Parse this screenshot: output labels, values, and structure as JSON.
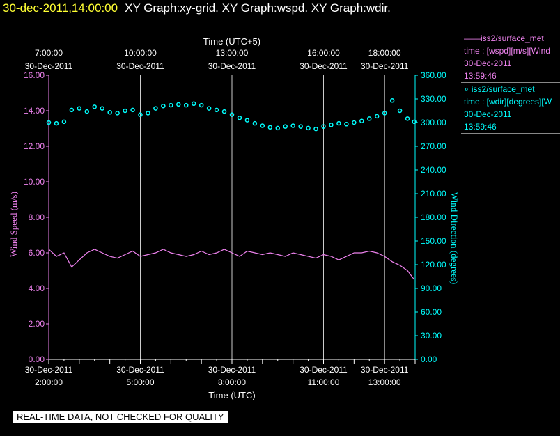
{
  "title": {
    "datetime": "30-dec-2011,14:00:00",
    "graphs": "XY Graph:xy-grid.  XY Graph:wspd.  XY Graph:wdir."
  },
  "legend": [
    {
      "marker": "line",
      "source": "iss2/surface_met",
      "variable": "time : [wspd][m/s][Wind",
      "date": "30-Dec-2011",
      "time": "13:59:46",
      "color": "#ee82ee"
    },
    {
      "marker": "dot",
      "source": "iss2/surface_met",
      "variable": "time : [wdir][degrees][W",
      "date": "30-Dec-2011",
      "time": "13:59:46",
      "color": "#00ffff"
    }
  ],
  "quality_note": "REAL-TIME DATA, NOT CHECKED FOR QUALITY",
  "chart_data": {
    "type": "line",
    "top_axis": {
      "label": "Time (UTC+5)",
      "ticks": [
        {
          "hour": 2,
          "time": "7:00:00",
          "date": "30-Dec-2011"
        },
        {
          "hour": 5,
          "time": "10:00:00",
          "date": "30-Dec-2011"
        },
        {
          "hour": 8,
          "time": "13:00:00",
          "date": "30-Dec-2011"
        },
        {
          "hour": 11,
          "time": "16:00:00",
          "date": "30-Dec-2011"
        },
        {
          "hour": 13,
          "time": "18:00:00",
          "date": "30-Dec-2011"
        }
      ]
    },
    "bottom_axis": {
      "label": "Time (UTC)",
      "xlim_hours": [
        2,
        14
      ],
      "ticks": [
        {
          "hour": 2,
          "time": "2:00:00",
          "date": "30-Dec-2011"
        },
        {
          "hour": 5,
          "time": "5:00:00",
          "date": "30-Dec-2011"
        },
        {
          "hour": 8,
          "time": "8:00:00",
          "date": "30-Dec-2011"
        },
        {
          "hour": 11,
          "time": "11:00:00",
          "date": "30-Dec-2011"
        },
        {
          "hour": 13,
          "time": "13:00:00",
          "date": "30-Dec-2011"
        }
      ]
    },
    "left_axis": {
      "label": "Wind Speed (m/s)",
      "color": "#ee82ee",
      "ylim": [
        0,
        16
      ],
      "ticks": [
        "0.00",
        "2.00",
        "4.00",
        "6.00",
        "8.00",
        "10.00",
        "12.00",
        "14.00",
        "16.00"
      ]
    },
    "right_axis": {
      "label": "Wind Direction (degrees)",
      "color": "#00ffff",
      "ylim": [
        0,
        360
      ],
      "ticks": [
        "0.00",
        "30.00",
        "60.00",
        "90.00",
        "120.00",
        "150.00",
        "180.00",
        "210.00",
        "240.00",
        "270.00",
        "300.00",
        "330.00",
        "360.00"
      ]
    },
    "grid": "vertical lines at top/bottom time ticks",
    "series": [
      {
        "name": "iss2/surface_met wspd",
        "axis": "left",
        "style": "line",
        "color": "#ee82ee",
        "x_hours": [
          2.0,
          2.25,
          2.5,
          2.75,
          3.0,
          3.25,
          3.5,
          3.75,
          4.0,
          4.25,
          4.5,
          4.75,
          5.0,
          5.25,
          5.5,
          5.75,
          6.0,
          6.25,
          6.5,
          6.75,
          7.0,
          7.25,
          7.5,
          7.75,
          8.0,
          8.25,
          8.5,
          8.75,
          9.0,
          9.25,
          9.5,
          9.75,
          10.0,
          10.25,
          10.5,
          10.75,
          11.0,
          11.25,
          11.5,
          11.75,
          12.0,
          12.25,
          12.5,
          12.75,
          13.0,
          13.25,
          13.5,
          13.75,
          13.97
        ],
        "values": [
          6.2,
          5.8,
          6.0,
          5.2,
          5.6,
          6.0,
          6.2,
          6.0,
          5.8,
          5.7,
          5.9,
          6.1,
          5.8,
          5.9,
          6.0,
          6.2,
          6.0,
          5.9,
          5.8,
          5.9,
          6.1,
          5.9,
          6.0,
          6.2,
          6.0,
          5.8,
          6.1,
          6.0,
          5.9,
          6.0,
          5.9,
          5.8,
          6.0,
          5.9,
          5.8,
          5.7,
          5.9,
          5.8,
          5.6,
          5.8,
          6.0,
          6.0,
          6.1,
          6.0,
          5.8,
          5.5,
          5.3,
          5.0,
          4.5
        ]
      },
      {
        "name": "iss2/surface_met wdir",
        "axis": "right",
        "style": "dots",
        "color": "#00ffff",
        "x_hours": [
          2.0,
          2.25,
          2.5,
          2.75,
          3.0,
          3.25,
          3.5,
          3.75,
          4.0,
          4.25,
          4.5,
          4.75,
          5.0,
          5.25,
          5.5,
          5.75,
          6.0,
          6.25,
          6.5,
          6.75,
          7.0,
          7.25,
          7.5,
          7.75,
          8.0,
          8.25,
          8.5,
          8.75,
          9.0,
          9.25,
          9.5,
          9.75,
          10.0,
          10.25,
          10.5,
          10.75,
          11.0,
          11.25,
          11.5,
          11.75,
          12.0,
          12.25,
          12.5,
          12.75,
          13.0,
          13.25,
          13.5,
          13.75,
          13.97
        ],
        "values": [
          300,
          299,
          301,
          316,
          318,
          314,
          320,
          318,
          313,
          312,
          315,
          316,
          310,
          312,
          318,
          321,
          322,
          323,
          322,
          324,
          322,
          318,
          316,
          314,
          310,
          306,
          303,
          299,
          296,
          294,
          293,
          295,
          296,
          295,
          293,
          292,
          295,
          297,
          299,
          298,
          300,
          302,
          305,
          308,
          312,
          328,
          315,
          305,
          301
        ]
      }
    ]
  }
}
